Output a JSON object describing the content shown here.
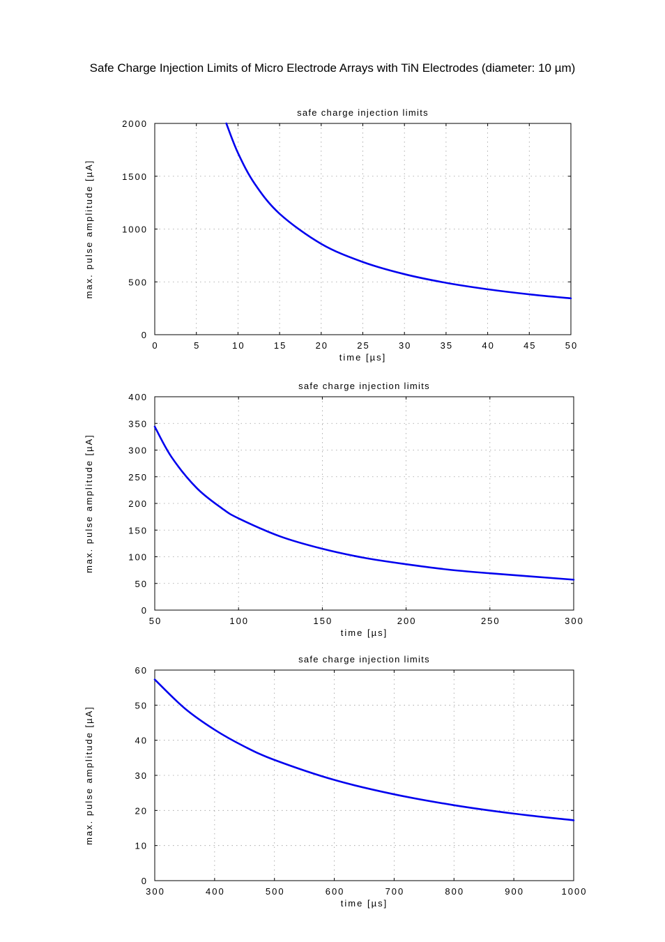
{
  "page_title": "Safe Charge Injection Limits of Micro Electrode Arrays with TiN Electrodes (diameter: 10 µm)",
  "colors": {
    "curve": "#0000ee",
    "grid": "#9a9a9a",
    "frame": "#000000"
  },
  "chart_data": [
    {
      "type": "line",
      "title": "safe charge injection limits",
      "xlabel": "time [µs]",
      "ylabel": "max. pulse amplitude [µA]",
      "xlim": [
        0,
        50
      ],
      "ylim": [
        0,
        2000
      ],
      "xticks": [
        0,
        5,
        10,
        15,
        20,
        25,
        30,
        35,
        40,
        45,
        50
      ],
      "yticks": [
        0,
        500,
        1000,
        1500,
        2000
      ],
      "grid": true,
      "series": [
        {
          "x": [
            8.6,
            10,
            12,
            15,
            20,
            25,
            30,
            35,
            40,
            45,
            50
          ],
          "y": [
            2000,
            1720,
            1430,
            1145,
            860,
            688,
            573,
            491,
            430,
            382,
            344
          ]
        }
      ]
    },
    {
      "type": "line",
      "title": "safe charge injection limits",
      "xlabel": "time [µs]",
      "ylabel": "max. pulse amplitude [µA]",
      "xlim": [
        50,
        300
      ],
      "ylim": [
        0,
        400
      ],
      "xticks": [
        50,
        100,
        150,
        200,
        250,
        300
      ],
      "yticks": [
        0,
        50,
        100,
        150,
        200,
        250,
        300,
        350,
        400
      ],
      "grid": true,
      "series": [
        {
          "x": [
            50,
            60,
            75,
            90,
            100,
            125,
            150,
            175,
            200,
            225,
            250,
            275,
            300
          ],
          "y": [
            344,
            287,
            229,
            191,
            172,
            138,
            115,
            98,
            86,
            76,
            69,
            63,
            57
          ]
        }
      ]
    },
    {
      "type": "line",
      "title": "safe charge injection limits",
      "xlabel": "time [µs]",
      "ylabel": "max. pulse amplitude [µA]",
      "xlim": [
        300,
        1000
      ],
      "ylim": [
        0,
        60
      ],
      "xticks": [
        300,
        400,
        500,
        600,
        700,
        800,
        900,
        1000
      ],
      "yticks": [
        0,
        10,
        20,
        30,
        40,
        50,
        60
      ],
      "grid": true,
      "series": [
        {
          "x": [
            300,
            350,
            400,
            450,
            500,
            600,
            700,
            800,
            900,
            1000
          ],
          "y": [
            57.3,
            49.1,
            43,
            38.2,
            34.4,
            28.7,
            24.6,
            21.5,
            19.1,
            17.2
          ]
        }
      ]
    }
  ]
}
